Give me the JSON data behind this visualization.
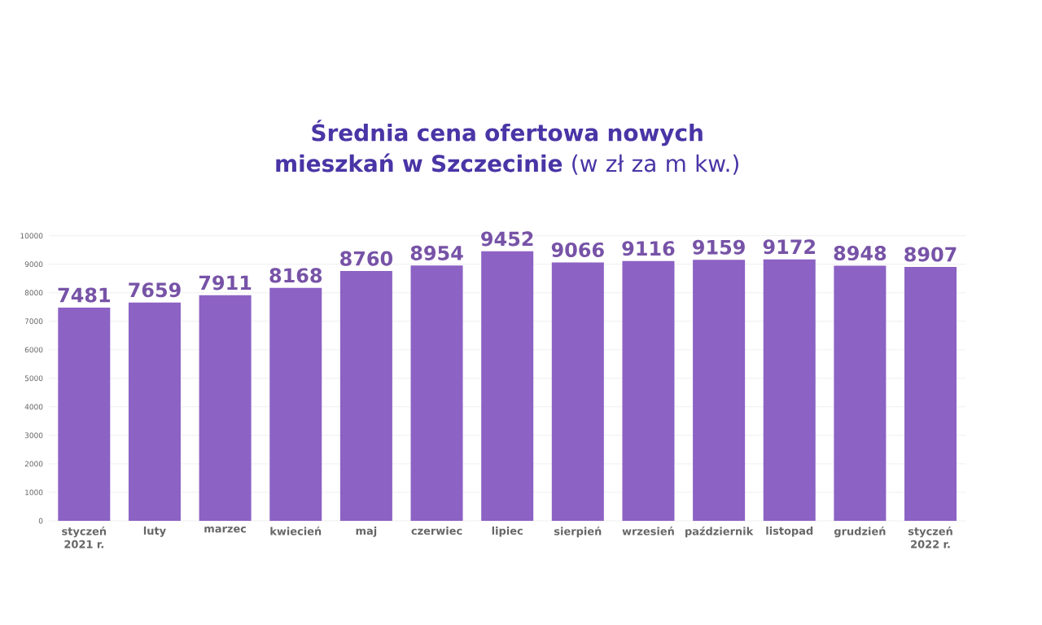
{
  "chart_data": {
    "type": "bar",
    "title": "**Średnia cena ofertowa nowych mieszkań w Szczecinie** (w zł za m kw.)",
    "categories": [
      "styczeń 2021 r.",
      "luty",
      "marzec",
      "kwiecień",
      "maj",
      "czerwiec",
      "lipiec",
      "sierpień",
      "wrzesień",
      "październik",
      "listopad",
      "grudzień",
      "styczeń 2022 r."
    ],
    "values": [
      7481,
      7659,
      7911,
      8168,
      8760,
      8954,
      9452,
      9066,
      9116,
      9159,
      9172,
      8948,
      8907
    ],
    "color": "#8c62c4",
    "ylim": [
      0,
      10000
    ],
    "yticks": [
      0,
      1000,
      2000,
      3000,
      4000,
      5000,
      6000,
      7000,
      8000,
      9000,
      10000
    ],
    "grid": "y",
    "data_labels": true
  }
}
